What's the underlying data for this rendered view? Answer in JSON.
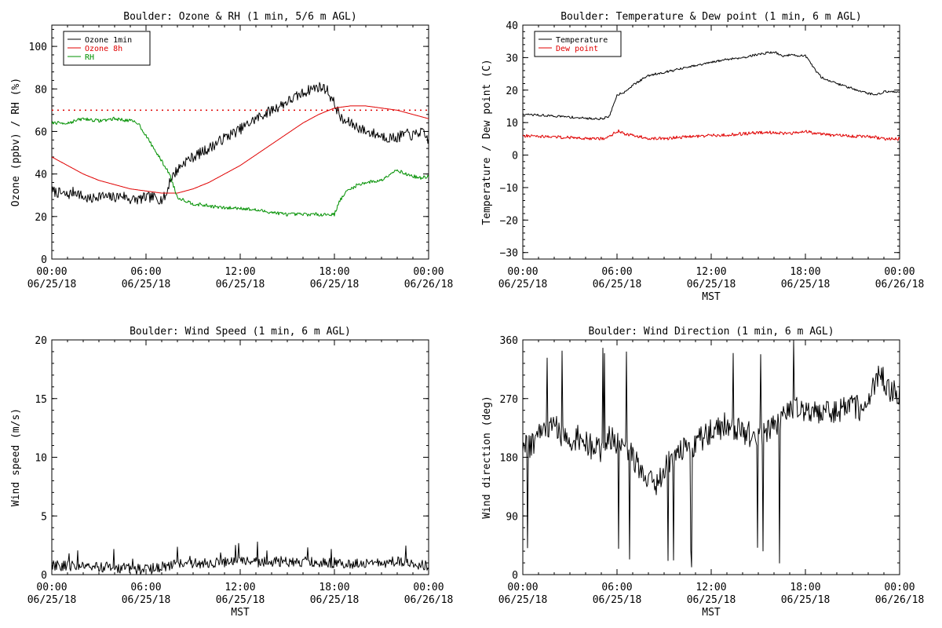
{
  "chart_data": [
    {
      "type": "line",
      "title": "Boulder: Ozone & RH (1 min, 5/6 m AGL)",
      "xlabel": "",
      "ylabel": "Ozone (ppbv) / RH (%)",
      "x_ticks": [
        {
          "time": "00:00",
          "date": "06/25/18"
        },
        {
          "time": "06:00",
          "date": "06/25/18"
        },
        {
          "time": "12:00",
          "date": "06/25/18"
        },
        {
          "time": "18:00",
          "date": "06/25/18"
        },
        {
          "time": "00:00",
          "date": "06/26/18"
        }
      ],
      "y_ticks": [
        "0",
        "20",
        "40",
        "60",
        "80",
        "100"
      ],
      "ylim": [
        0,
        110
      ],
      "xlim_hours": [
        0,
        24
      ],
      "legend_position": "top-left",
      "reference_line": {
        "y": 70,
        "color": "#e00000",
        "style": "dotted"
      },
      "series": [
        {
          "name": "Ozone 1min",
          "color": "#000000",
          "noise": 2.5,
          "x": [
            0,
            0.5,
            1,
            1.5,
            2,
            2.5,
            3,
            3.5,
            4,
            4.5,
            5,
            5.5,
            6,
            6.5,
            7,
            7.3,
            7.5,
            8,
            8.5,
            9,
            10,
            11,
            12,
            13,
            13.5,
            14,
            15,
            16,
            16.5,
            17,
            17.5,
            18,
            18.5,
            19,
            19.5,
            20,
            20.5,
            21,
            21.5,
            22,
            22.5,
            23,
            23.5,
            24
          ],
          "y": [
            32,
            31,
            30,
            32,
            29,
            28,
            30,
            29,
            29,
            30,
            28,
            28,
            29,
            29,
            28,
            30,
            37,
            42,
            46,
            48,
            52,
            57,
            61,
            66,
            68,
            70,
            74,
            78,
            80,
            81,
            80,
            73,
            65,
            64,
            62,
            60,
            59,
            58,
            57,
            57,
            59,
            58,
            60,
            56
          ]
        },
        {
          "name": "Ozone 8h",
          "color": "#e00000",
          "noise": 0,
          "x": [
            0,
            1,
            2,
            3,
            4,
            5,
            6,
            7,
            8,
            9,
            10,
            11,
            12,
            13,
            14,
            15,
            16,
            17,
            18,
            19,
            20,
            21,
            22,
            23,
            24
          ],
          "y": [
            48,
            44,
            40,
            37,
            35,
            33,
            32,
            31,
            31,
            33,
            36,
            40,
            44,
            49,
            54,
            59,
            64,
            68,
            71,
            72,
            72,
            71,
            70,
            68,
            66
          ]
        },
        {
          "name": "RH",
          "color": "#009000",
          "noise": 0.8,
          "x": [
            0,
            1,
            2,
            3,
            4,
            5,
            5.5,
            6,
            6.5,
            7,
            7.5,
            8,
            9,
            10,
            11,
            12,
            13,
            14,
            15,
            16,
            17,
            18,
            18.3,
            18.8,
            19.5,
            20,
            21,
            21.5,
            22,
            22.5,
            23,
            23.5,
            24
          ],
          "y": [
            64,
            64,
            66,
            65,
            66,
            65,
            64,
            58,
            52,
            46,
            40,
            29,
            26,
            25,
            24,
            24,
            23,
            22,
            21,
            21,
            21,
            21,
            27,
            32,
            35,
            36,
            37,
            40,
            42,
            40,
            39,
            38,
            39
          ]
        }
      ]
    },
    {
      "type": "line",
      "title": "Boulder: Temperature & Dew point (1 min, 6 m AGL)",
      "xlabel": "MST",
      "ylabel": "Temperature / Dew point (C)",
      "x_ticks": [
        {
          "time": "00:00",
          "date": "06/25/18"
        },
        {
          "time": "06:00",
          "date": "06/25/18"
        },
        {
          "time": "12:00",
          "date": "06/25/18"
        },
        {
          "time": "18:00",
          "date": "06/25/18"
        },
        {
          "time": "00:00",
          "date": "06/26/18"
        }
      ],
      "y_ticks": [
        "−30",
        "−20",
        "−10",
        "0",
        "10",
        "20",
        "30",
        "40"
      ],
      "ylim": [
        -32,
        40
      ],
      "xlim_hours": [
        0,
        24
      ],
      "legend_position": "top-left",
      "series": [
        {
          "name": "Temperature",
          "color": "#000000",
          "noise": 0.35,
          "x": [
            0,
            1,
            2,
            3,
            4,
            5,
            5.5,
            6,
            6.5,
            7,
            8,
            9,
            10,
            11,
            12,
            13,
            14,
            15,
            16,
            16.5,
            17,
            18,
            18.5,
            19,
            20,
            21,
            22,
            22.5,
            23,
            24
          ],
          "y": [
            12.5,
            12.3,
            12.0,
            11.7,
            11.3,
            11.2,
            11.8,
            18.5,
            19.5,
            21.5,
            24.5,
            25.5,
            26.5,
            27.5,
            28.5,
            29.5,
            30.0,
            31.0,
            31.8,
            30.5,
            30.8,
            30.5,
            27,
            24,
            22,
            20.5,
            19,
            18.5,
            19.5,
            19.5
          ]
        },
        {
          "name": "Dew point",
          "color": "#e00000",
          "noise": 0.5,
          "x": [
            0,
            1,
            2,
            3,
            4,
            5,
            5.5,
            6,
            6.5,
            7,
            8,
            9,
            10,
            11,
            12,
            13,
            14,
            15,
            16,
            17,
            18,
            18.5,
            19,
            20,
            21,
            22,
            23,
            24
          ],
          "y": [
            6,
            5.8,
            5.6,
            5.4,
            5.2,
            5.0,
            5.5,
            7.5,
            6.5,
            6.0,
            5.2,
            5.0,
            5.5,
            5.8,
            6.0,
            6.2,
            6.5,
            7.0,
            7.0,
            6.5,
            7.5,
            6.8,
            6.5,
            6.0,
            5.8,
            5.8,
            5.0,
            5.0
          ]
        }
      ]
    },
    {
      "type": "line",
      "title": "Boulder: Wind Speed (1 min, 6 m AGL)",
      "xlabel": "MST",
      "ylabel": "Wind speed (m/s)",
      "x_ticks": [
        {
          "time": "00:00",
          "date": "06/25/18"
        },
        {
          "time": "06:00",
          "date": "06/25/18"
        },
        {
          "time": "12:00",
          "date": "06/25/18"
        },
        {
          "time": "18:00",
          "date": "06/25/18"
        },
        {
          "time": "00:00",
          "date": "06/26/18"
        }
      ],
      "y_ticks": [
        "0",
        "5",
        "10",
        "15",
        "20"
      ],
      "ylim": [
        0,
        20
      ],
      "xlim_hours": [
        0,
        24
      ],
      "series": [
        {
          "name": "",
          "color": "#000000",
          "noise": 0.45,
          "x": [
            0,
            2,
            4,
            5,
            6,
            7,
            8,
            10,
            12,
            14,
            16,
            18,
            20,
            22,
            24
          ],
          "y": [
            0.8,
            0.7,
            0.6,
            0.5,
            0.4,
            0.7,
            0.9,
            1.0,
            1.1,
            1.1,
            1.1,
            1.0,
            0.9,
            1.1,
            0.8
          ]
        }
      ]
    },
    {
      "type": "line",
      "title": "Boulder: Wind Direction (1 min, 6 m AGL)",
      "xlabel": "MST",
      "ylabel": "Wind direction (deg)",
      "x_ticks": [
        {
          "time": "00:00",
          "date": "06/25/18"
        },
        {
          "time": "06:00",
          "date": "06/25/18"
        },
        {
          "time": "12:00",
          "date": "06/25/18"
        },
        {
          "time": "18:00",
          "date": "06/25/18"
        },
        {
          "time": "00:00",
          "date": "06/26/18"
        }
      ],
      "y_ticks": [
        "0",
        "90",
        "180",
        "270",
        "360"
      ],
      "ylim": [
        0,
        360
      ],
      "xlim_hours": [
        0,
        24
      ],
      "series": [
        {
          "name": "",
          "color": "#000000",
          "noise": 20,
          "x": [
            0,
            0.5,
            1,
            1.5,
            2,
            2.5,
            3,
            3.5,
            4,
            4.5,
            5,
            5.5,
            6,
            6.5,
            7,
            7.5,
            8,
            8.5,
            9,
            9.5,
            10,
            11,
            12,
            13,
            14,
            15,
            16,
            16.5,
            17,
            17.5,
            18,
            18.5,
            19,
            20,
            21,
            21.5,
            22,
            22.5,
            23,
            23.5,
            24
          ],
          "y": [
            190,
            200,
            210,
            220,
            230,
            210,
            200,
            210,
            200,
            195,
            190,
            210,
            200,
            190,
            180,
            160,
            150,
            140,
            160,
            180,
            190,
            200,
            220,
            230,
            220,
            210,
            230,
            240,
            250,
            260,
            250,
            245,
            250,
            250,
            260,
            255,
            270,
            300,
            300,
            280,
            280
          ]
        }
      ]
    }
  ]
}
